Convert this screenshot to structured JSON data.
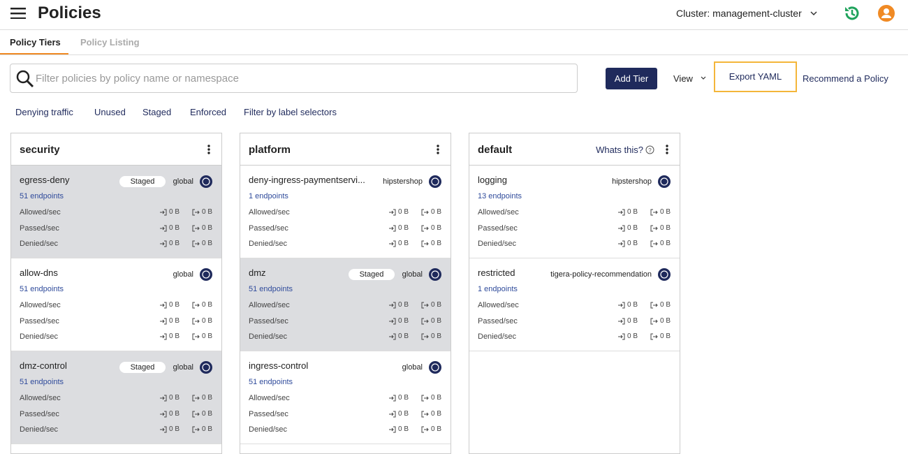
{
  "header": {
    "title": "Policies",
    "cluster": "Cluster: management-cluster"
  },
  "tabs": [
    "Policy Tiers",
    "Policy Listing"
  ],
  "search": {
    "placeholder": "Filter policies by policy name or namespace"
  },
  "actions": {
    "add_tier": "Add Tier",
    "view": "View",
    "export": "Export YAML",
    "recommend": "Recommend a Policy"
  },
  "filters": [
    "Denying traffic",
    "Unused",
    "Staged",
    "Enforced",
    "Filter by label selectors"
  ],
  "tiers": [
    {
      "name": "security",
      "policies": [
        {
          "name": "egress-deny",
          "badge": "Staged",
          "scope": "global",
          "endpoints": "51 endpoints",
          "rows": [
            {
              "label": "Allowed/sec",
              "in": "0 B",
              "out": "0 B"
            },
            {
              "label": "Passed/sec",
              "in": "0 B",
              "out": "0 B"
            },
            {
              "label": "Denied/sec",
              "in": "0 B",
              "out": "0 B"
            }
          ]
        },
        {
          "name": "allow-dns",
          "scope": "global",
          "endpoints": "51 endpoints",
          "rows": [
            {
              "label": "Allowed/sec",
              "in": "0 B",
              "out": "0 B"
            },
            {
              "label": "Passed/sec",
              "in": "0 B",
              "out": "0 B"
            },
            {
              "label": "Denied/sec",
              "in": "0 B",
              "out": "0 B"
            }
          ]
        },
        {
          "name": "dmz-control",
          "badge": "Staged",
          "scope": "global",
          "endpoints": "51 endpoints",
          "rows": [
            {
              "label": "Allowed/sec",
              "in": "0 B",
              "out": "0 B"
            },
            {
              "label": "Passed/sec",
              "in": "0 B",
              "out": "0 B"
            },
            {
              "label": "Denied/sec",
              "in": "0 B",
              "out": "0 B"
            }
          ]
        }
      ]
    },
    {
      "name": "platform",
      "policies": [
        {
          "name": "deny-ingress-paymentservi...",
          "scope": "hipstershop",
          "endpoints": "1 endpoints",
          "rows": [
            {
              "label": "Allowed/sec",
              "in": "0 B",
              "out": "0 B"
            },
            {
              "label": "Passed/sec",
              "in": "0 B",
              "out": "0 B"
            },
            {
              "label": "Denied/sec",
              "in": "0 B",
              "out": "0 B"
            }
          ]
        },
        {
          "name": "dmz",
          "badge": "Staged",
          "scope": "global",
          "endpoints": "51 endpoints",
          "rows": [
            {
              "label": "Allowed/sec",
              "in": "0 B",
              "out": "0 B"
            },
            {
              "label": "Passed/sec",
              "in": "0 B",
              "out": "0 B"
            },
            {
              "label": "Denied/sec",
              "in": "0 B",
              "out": "0 B"
            }
          ]
        },
        {
          "name": "ingress-control",
          "scope": "global",
          "endpoints": "51 endpoints",
          "rows": [
            {
              "label": "Allowed/sec",
              "in": "0 B",
              "out": "0 B"
            },
            {
              "label": "Passed/sec",
              "in": "0 B",
              "out": "0 B"
            },
            {
              "label": "Denied/sec",
              "in": "0 B",
              "out": "0 B"
            }
          ]
        }
      ]
    },
    {
      "name": "default",
      "help": "Whats this?",
      "policies": [
        {
          "name": "logging",
          "scope": "hipstershop",
          "endpoints": "13 endpoints",
          "rows": [
            {
              "label": "Allowed/sec",
              "in": "0 B",
              "out": "0 B"
            },
            {
              "label": "Passed/sec",
              "in": "0 B",
              "out": "0 B"
            },
            {
              "label": "Denied/sec",
              "in": "0 B",
              "out": "0 B"
            }
          ]
        },
        {
          "name": "restricted",
          "scope": "tigera-policy-recommendation",
          "endpoints": "1 endpoints",
          "rows": [
            {
              "label": "Allowed/sec",
              "in": "0 B",
              "out": "0 B"
            },
            {
              "label": "Passed/sec",
              "in": "0 B",
              "out": "0 B"
            },
            {
              "label": "Denied/sec",
              "in": "0 B",
              "out": "0 B"
            }
          ]
        }
      ]
    }
  ]
}
